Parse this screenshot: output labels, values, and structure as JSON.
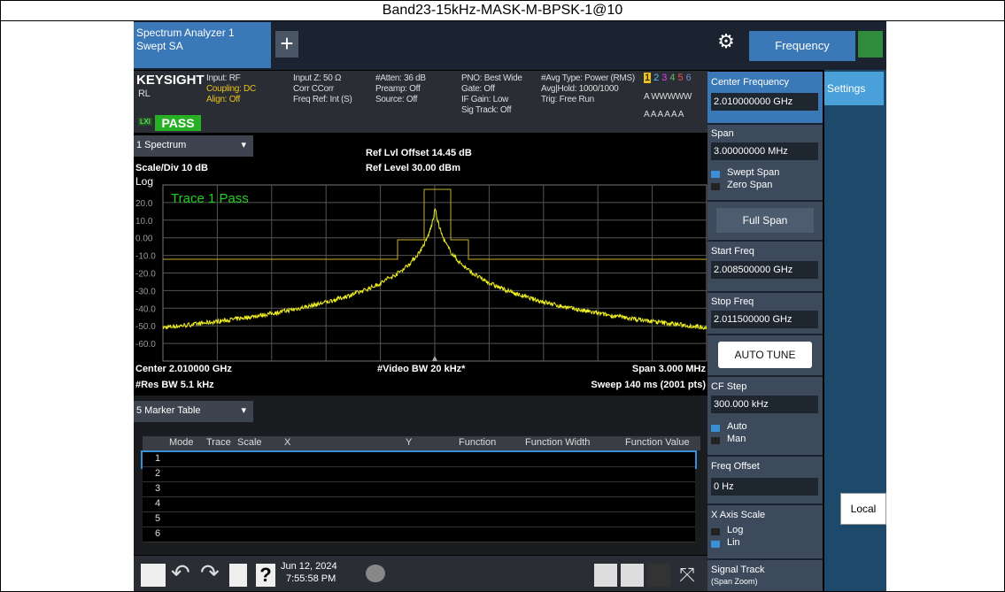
{
  "header": {
    "title": "Band23-15kHz-MASK-M-BPSK-1@10"
  },
  "toolbar": {
    "tab_line1": "Spectrum Analyzer 1",
    "tab_line2": "Swept SA",
    "menu": "Frequency"
  },
  "status": {
    "brand": "KEYSIGHT",
    "input": "Input: RF",
    "coupling": "Coupling: DC",
    "align": "Align: Off",
    "rl": "RL",
    "lxi": "LXI",
    "pass": "PASS",
    "col2": [
      "Input Z: 50 Ω",
      "Corr CCorr",
      "Freq Ref: Int (S)"
    ],
    "col3": [
      "#Atten: 36 dB",
      "Preamp: Off",
      "Source: Off"
    ],
    "col4": [
      "PNO: Best Wide",
      "Gate: Off",
      "IF Gain: Low",
      "Sig Track: Off"
    ],
    "col5": [
      "#Avg Type: Power (RMS)",
      "Avg|Hold: 1000/1000",
      "Trig: Free Run"
    ],
    "traces": [
      "1",
      "2",
      "3",
      "4",
      "5",
      "6"
    ],
    "trace_types": "A WWWWW",
    "trace_dets": "A A A A A A"
  },
  "spectrum": {
    "window": "1 Spectrum",
    "scale": "Scale/Div 10 dB",
    "log": "Log",
    "ref_offset": "Ref Lvl Offset 14.45 dB",
    "ref_level": "Ref Level 30.00 dBm",
    "trace_pass": "Trace 1 Pass",
    "ylabels": [
      "20.0",
      "10.0",
      "0.00",
      "-10.0",
      "-20.0",
      "-30.0",
      "-40.0",
      "-50.0",
      "-60.0"
    ],
    "center": "Center 2.010000 GHz",
    "vbw": "#Video BW 20 kHz*",
    "span": "Span 3.000 MHz",
    "rbw": "#Res BW 5.1 kHz",
    "sweep": "Sweep 140 ms (2001 pts)"
  },
  "marker_table": {
    "window": "5 Marker Table",
    "headers": [
      "Mode",
      "Trace",
      "Scale",
      "X",
      "Y",
      "Function",
      "Function Width",
      "Function Value"
    ],
    "rows": [
      "1",
      "2",
      "3",
      "4",
      "5",
      "6"
    ]
  },
  "taskbar": {
    "date": "Jun 12, 2024",
    "time": "7:55:58 PM"
  },
  "softkeys": {
    "center_label": "Center Frequency",
    "center_value": "2.010000000 GHz",
    "span_label": "Span",
    "span_value": "3.00000000 MHz",
    "swept_span": "Swept Span",
    "zero_span": "Zero Span",
    "full_span": "Full Span",
    "start_label": "Start Freq",
    "start_value": "2.008500000 GHz",
    "stop_label": "Stop Freq",
    "stop_value": "2.011500000 GHz",
    "auto_tune": "AUTO TUNE",
    "cf_step_label": "CF Step",
    "cf_step_value": "300.000 kHz",
    "auto": "Auto",
    "man": "Man",
    "offset_label": "Freq Offset",
    "offset_value": "0 Hz",
    "xscale_label": "X Axis Scale",
    "log": "Log",
    "lin": "Lin",
    "signal_track": "Signal Track",
    "span_zoom": "(Span Zoom)"
  },
  "side": {
    "settings": "Settings",
    "local": "Local"
  }
}
